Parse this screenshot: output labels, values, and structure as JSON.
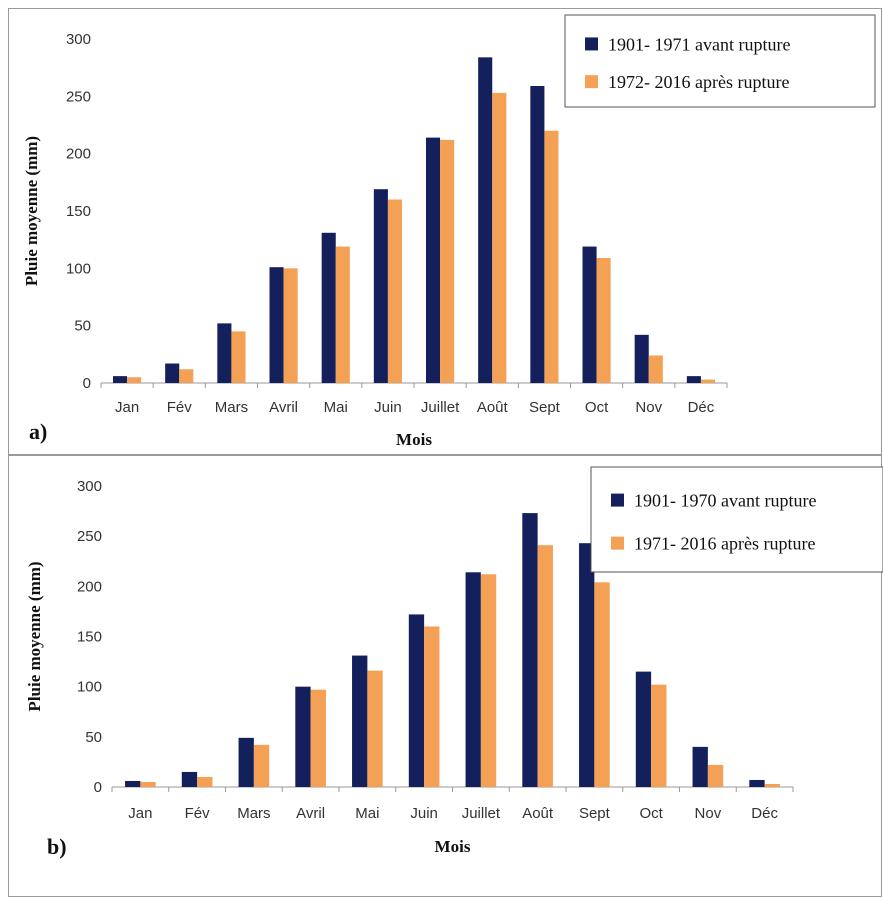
{
  "chart_data": [
    {
      "type": "bar",
      "panel_label": "a)",
      "xlabel": "Mois",
      "ylabel": "Pluie moyenne (mm)",
      "ylim": [
        0,
        300
      ],
      "yticks": [
        "0",
        "50",
        "100",
        "150",
        "200",
        "250",
        "300"
      ],
      "grid": false,
      "legend_position": "top-right",
      "categories": [
        "Jan",
        "Fév",
        "Mars",
        "Avril",
        "Mai",
        "Juin",
        "Juillet",
        "Août",
        "Sept",
        "Oct",
        "Nov",
        "Déc"
      ],
      "series": [
        {
          "name": "1901- 1971 avant rupture",
          "color": "#14205c",
          "values": [
            6,
            17,
            52,
            101,
            131,
            169,
            214,
            284,
            259,
            119,
            42,
            6
          ]
        },
        {
          "name": "1972- 2016 après rupture",
          "color": "#f4a055",
          "values": [
            5,
            12,
            45,
            100,
            119,
            160,
            212,
            253,
            220,
            109,
            24,
            3
          ]
        }
      ]
    },
    {
      "type": "bar",
      "panel_label": "b)",
      "xlabel": "Mois",
      "ylabel": "Pluie moyenne (mm)",
      "ylim": [
        0,
        300
      ],
      "yticks": [
        "0",
        "50",
        "100",
        "150",
        "200",
        "250",
        "300"
      ],
      "grid": false,
      "legend_position": "top-right",
      "categories": [
        "Jan",
        "Fév",
        "Mars",
        "Avril",
        "Mai",
        "Juin",
        "Juillet",
        "Août",
        "Sept",
        "Oct",
        "Nov",
        "Déc"
      ],
      "series": [
        {
          "name": "1901- 1970 avant rupture",
          "color": "#14205c",
          "values": [
            6,
            15,
            49,
            100,
            131,
            172,
            214,
            273,
            243,
            115,
            40,
            7
          ]
        },
        {
          "name": "1971- 2016 après rupture",
          "color": "#f4a055",
          "values": [
            5,
            10,
            42,
            97,
            116,
            160,
            212,
            241,
            204,
            102,
            22,
            3
          ]
        }
      ]
    }
  ]
}
